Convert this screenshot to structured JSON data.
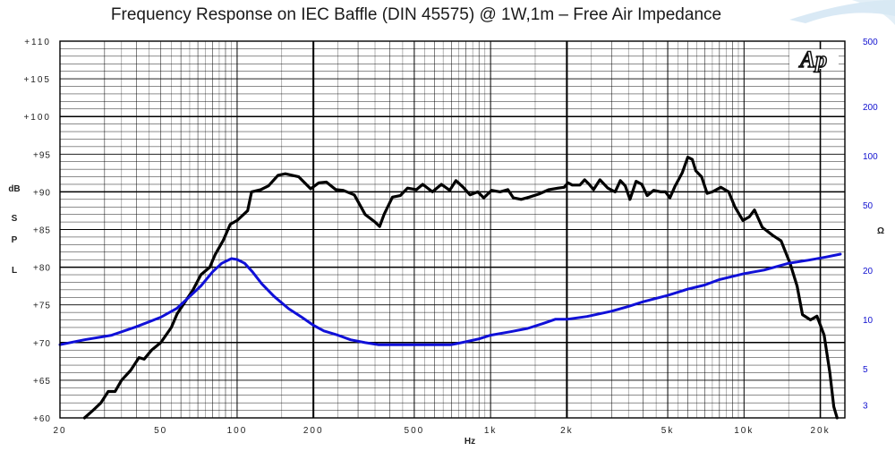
{
  "chart_data": {
    "type": "line",
    "title": "Frequency Response on IEC Baffle (DIN 45575)  @ 1W,1m – Free Air Impedance",
    "xlabel": "Hz",
    "ylabel_left_lines": [
      "dB",
      "S",
      "P",
      "L"
    ],
    "ylabel_right": "Ω",
    "x_scale": "log",
    "xlim": [
      20,
      25000
    ],
    "x_ticks": [
      {
        "v": 20,
        "label": "20"
      },
      {
        "v": 50,
        "label": "50"
      },
      {
        "v": 100,
        "label": "100"
      },
      {
        "v": 200,
        "label": "200"
      },
      {
        "v": 500,
        "label": "500"
      },
      {
        "v": 1000,
        "label": "1k"
      },
      {
        "v": 2000,
        "label": "2k"
      },
      {
        "v": 5000,
        "label": "5k"
      },
      {
        "v": 10000,
        "label": "10k"
      },
      {
        "v": 20000,
        "label": "20k"
      }
    ],
    "y_left_lim": [
      60,
      110
    ],
    "y_left_ticks": [
      {
        "v": 60,
        "label": "+60"
      },
      {
        "v": 65,
        "label": "+65"
      },
      {
        "v": 70,
        "label": "+70"
      },
      {
        "v": 75,
        "label": "+75"
      },
      {
        "v": 80,
        "label": "+80"
      },
      {
        "v": 85,
        "label": "+85"
      },
      {
        "v": 90,
        "label": "+90"
      },
      {
        "v": 95,
        "label": "+95"
      },
      {
        "v": 100,
        "label": "+100"
      },
      {
        "v": 105,
        "label": "+105"
      },
      {
        "v": 110,
        "label": "+110"
      }
    ],
    "y_right_scale": "log",
    "y_right_lim": [
      2.5,
      500
    ],
    "y_right_ticks": [
      {
        "v": 500,
        "label": "500"
      },
      {
        "v": 200,
        "label": "200"
      },
      {
        "v": 100,
        "label": "100"
      },
      {
        "v": 50,
        "label": "50"
      },
      {
        "v": 20,
        "label": "20"
      },
      {
        "v": 10,
        "label": "10"
      },
      {
        "v": 5,
        "label": "5"
      },
      {
        "v": 3,
        "label": "3"
      }
    ],
    "grid": true,
    "series": [
      {
        "name": "SPL",
        "axis": "left",
        "color": "#000000",
        "points": [
          [
            25,
            60.0
          ],
          [
            27,
            61.0
          ],
          [
            29,
            62.0
          ],
          [
            31,
            63.5
          ],
          [
            33,
            63.5
          ],
          [
            35,
            65.0
          ],
          [
            38,
            66.3
          ],
          [
            41,
            68.0
          ],
          [
            43,
            67.8
          ],
          [
            46,
            69.0
          ],
          [
            50,
            70.0
          ],
          [
            55,
            72.0
          ],
          [
            58,
            73.8
          ],
          [
            62,
            75.3
          ],
          [
            67,
            77.0
          ],
          [
            72,
            79.0
          ],
          [
            78,
            80.0
          ],
          [
            82,
            81.7
          ],
          [
            88,
            83.5
          ],
          [
            94,
            85.7
          ],
          [
            100,
            86.2
          ],
          [
            106,
            87.0
          ],
          [
            110,
            87.5
          ],
          [
            114,
            90.0
          ],
          [
            124,
            90.3
          ],
          [
            133,
            90.8
          ],
          [
            145,
            92.2
          ],
          [
            155,
            92.4
          ],
          [
            175,
            92.0
          ],
          [
            195,
            90.4
          ],
          [
            210,
            91.2
          ],
          [
            225,
            91.3
          ],
          [
            245,
            90.3
          ],
          [
            262,
            90.2
          ],
          [
            290,
            89.6
          ],
          [
            320,
            87.0
          ],
          [
            350,
            86.0
          ],
          [
            365,
            85.4
          ],
          [
            380,
            87.0
          ],
          [
            410,
            89.3
          ],
          [
            440,
            89.5
          ],
          [
            470,
            90.5
          ],
          [
            510,
            90.3
          ],
          [
            540,
            91.0
          ],
          [
            590,
            90.0
          ],
          [
            640,
            91.0
          ],
          [
            690,
            90.2
          ],
          [
            730,
            91.5
          ],
          [
            780,
            90.6
          ],
          [
            830,
            89.6
          ],
          [
            890,
            90.0
          ],
          [
            940,
            89.2
          ],
          [
            1010,
            90.2
          ],
          [
            1090,
            90.0
          ],
          [
            1170,
            90.3
          ],
          [
            1230,
            89.2
          ],
          [
            1320,
            89.0
          ],
          [
            1420,
            89.3
          ],
          [
            1550,
            89.7
          ],
          [
            1700,
            90.3
          ],
          [
            1850,
            90.5
          ],
          [
            1950,
            90.6
          ],
          [
            2020,
            91.2
          ],
          [
            2100,
            90.9
          ],
          [
            2250,
            90.9
          ],
          [
            2350,
            91.6
          ],
          [
            2450,
            91.0
          ],
          [
            2550,
            90.3
          ],
          [
            2700,
            91.6
          ],
          [
            2900,
            90.5
          ],
          [
            3100,
            90.0
          ],
          [
            3250,
            91.5
          ],
          [
            3400,
            90.8
          ],
          [
            3550,
            89.0
          ],
          [
            3750,
            91.4
          ],
          [
            3950,
            91.0
          ],
          [
            4150,
            89.5
          ],
          [
            4400,
            90.2
          ],
          [
            4700,
            90.0
          ],
          [
            4900,
            90.0
          ],
          [
            5100,
            89.2
          ],
          [
            5350,
            90.8
          ],
          [
            5700,
            92.5
          ],
          [
            6000,
            94.6
          ],
          [
            6250,
            94.3
          ],
          [
            6450,
            92.8
          ],
          [
            6800,
            92.0
          ],
          [
            7150,
            89.8
          ],
          [
            7500,
            90.0
          ],
          [
            8100,
            90.6
          ],
          [
            8700,
            90.0
          ],
          [
            9200,
            88.0
          ],
          [
            9900,
            86.2
          ],
          [
            10500,
            86.7
          ],
          [
            11000,
            87.6
          ],
          [
            11800,
            85.3
          ],
          [
            13000,
            84.2
          ],
          [
            14000,
            83.5
          ],
          [
            15200,
            80.5
          ],
          [
            16200,
            77.5
          ],
          [
            17000,
            73.7
          ],
          [
            18300,
            73.0
          ],
          [
            19400,
            73.5
          ],
          [
            20700,
            71.0
          ],
          [
            21800,
            66.0
          ],
          [
            22600,
            61.5
          ],
          [
            23300,
            60.0
          ]
        ]
      },
      {
        "name": "Impedance",
        "axis": "right",
        "color": "#1010d8",
        "points": [
          [
            20,
            7.0
          ],
          [
            25,
            7.5
          ],
          [
            32,
            8.0
          ],
          [
            40,
            9.0
          ],
          [
            50,
            10.3
          ],
          [
            58,
            11.7
          ],
          [
            65,
            13.8
          ],
          [
            72,
            16.0
          ],
          [
            80,
            19.5
          ],
          [
            87,
            22.0
          ],
          [
            95,
            23.5
          ],
          [
            100,
            23.2
          ],
          [
            107,
            22.0
          ],
          [
            115,
            19.5
          ],
          [
            125,
            16.5
          ],
          [
            140,
            13.8
          ],
          [
            160,
            11.6
          ],
          [
            180,
            10.3
          ],
          [
            200,
            9.2
          ],
          [
            220,
            8.5
          ],
          [
            250,
            8.0
          ],
          [
            280,
            7.5
          ],
          [
            320,
            7.2
          ],
          [
            360,
            7.0
          ],
          [
            420,
            7.0
          ],
          [
            500,
            7.0
          ],
          [
            600,
            7.0
          ],
          [
            700,
            7.0
          ],
          [
            800,
            7.3
          ],
          [
            900,
            7.6
          ],
          [
            1000,
            8.0
          ],
          [
            1200,
            8.4
          ],
          [
            1400,
            8.8
          ],
          [
            1600,
            9.4
          ],
          [
            1800,
            10.0
          ],
          [
            2000,
            10.0
          ],
          [
            2400,
            10.4
          ],
          [
            3000,
            11.2
          ],
          [
            3500,
            12.0
          ],
          [
            4000,
            12.8
          ],
          [
            5000,
            14.0
          ],
          [
            6000,
            15.3
          ],
          [
            7000,
            16.2
          ],
          [
            8000,
            17.5
          ],
          [
            10000,
            19.0
          ],
          [
            12000,
            20.0
          ],
          [
            15000,
            22.0
          ],
          [
            18000,
            23.0
          ],
          [
            21000,
            24.0
          ],
          [
            24000,
            25.0
          ]
        ]
      }
    ]
  }
}
